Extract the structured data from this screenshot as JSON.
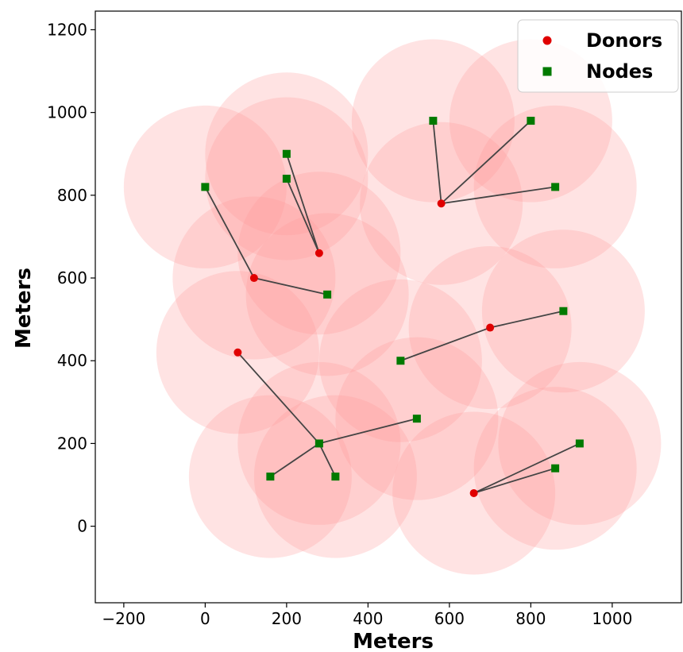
{
  "chart_data": {
    "type": "scatter",
    "title": "",
    "xlabel": "Meters",
    "ylabel": "Meters",
    "xlim": [
      -270,
      1170
    ],
    "ylim": [
      -185,
      1245
    ],
    "xticks": [
      -200,
      0,
      200,
      400,
      600,
      800,
      1000
    ],
    "yticks": [
      0,
      200,
      400,
      600,
      800,
      1000,
      1200
    ],
    "xtick_labels": [
      "−200",
      "0",
      "200",
      "400",
      "600",
      "800",
      "1000"
    ],
    "ytick_labels": [
      "0",
      "200",
      "400",
      "600",
      "800",
      "1000",
      "1200"
    ],
    "grid": false,
    "legend_position": "upper-right",
    "coverage_radius": 200,
    "series": [
      {
        "name": "Donors",
        "marker": "circle",
        "color": "#e00000",
        "points": [
          {
            "x": 280,
            "y": 660
          },
          {
            "x": 120,
            "y": 600
          },
          {
            "x": 580,
            "y": 780
          },
          {
            "x": 80,
            "y": 420
          },
          {
            "x": 700,
            "y": 480
          },
          {
            "x": 660,
            "y": 80
          }
        ]
      },
      {
        "name": "Nodes",
        "marker": "square",
        "color": "#007a00",
        "points": [
          {
            "x": 0,
            "y": 820
          },
          {
            "x": 200,
            "y": 900
          },
          {
            "x": 200,
            "y": 840
          },
          {
            "x": 300,
            "y": 560
          },
          {
            "x": 560,
            "y": 980
          },
          {
            "x": 800,
            "y": 980
          },
          {
            "x": 860,
            "y": 820
          },
          {
            "x": 480,
            "y": 400
          },
          {
            "x": 880,
            "y": 520
          },
          {
            "x": 280,
            "y": 200
          },
          {
            "x": 520,
            "y": 260
          },
          {
            "x": 160,
            "y": 120
          },
          {
            "x": 320,
            "y": 120
          },
          {
            "x": 920,
            "y": 200
          },
          {
            "x": 860,
            "y": 140
          }
        ]
      }
    ],
    "links": [
      {
        "from": [
          280,
          660
        ],
        "to": [
          200,
          900
        ]
      },
      {
        "from": [
          280,
          660
        ],
        "to": [
          200,
          840
        ]
      },
      {
        "from": [
          120,
          600
        ],
        "to": [
          0,
          820
        ]
      },
      {
        "from": [
          120,
          600
        ],
        "to": [
          300,
          560
        ]
      },
      {
        "from": [
          580,
          780
        ],
        "to": [
          560,
          980
        ]
      },
      {
        "from": [
          580,
          780
        ],
        "to": [
          800,
          980
        ]
      },
      {
        "from": [
          580,
          780
        ],
        "to": [
          860,
          820
        ]
      },
      {
        "from": [
          700,
          480
        ],
        "to": [
          480,
          400
        ]
      },
      {
        "from": [
          700,
          480
        ],
        "to": [
          880,
          520
        ]
      },
      {
        "from": [
          80,
          420
        ],
        "to": [
          280,
          200
        ]
      },
      {
        "from": [
          280,
          200
        ],
        "to": [
          520,
          260
        ]
      },
      {
        "from": [
          280,
          200
        ],
        "to": [
          160,
          120
        ]
      },
      {
        "from": [
          280,
          200
        ],
        "to": [
          320,
          120
        ]
      },
      {
        "from": [
          660,
          80
        ],
        "to": [
          920,
          200
        ]
      },
      {
        "from": [
          660,
          80
        ],
        "to": [
          860,
          140
        ]
      }
    ],
    "coverage_circles": [
      {
        "x": 0,
        "y": 820
      },
      {
        "x": 200,
        "y": 900
      },
      {
        "x": 200,
        "y": 840
      },
      {
        "x": 280,
        "y": 660
      },
      {
        "x": 120,
        "y": 600
      },
      {
        "x": 300,
        "y": 560
      },
      {
        "x": 80,
        "y": 420
      },
      {
        "x": 560,
        "y": 980
      },
      {
        "x": 800,
        "y": 980
      },
      {
        "x": 580,
        "y": 780
      },
      {
        "x": 860,
        "y": 820
      },
      {
        "x": 700,
        "y": 480
      },
      {
        "x": 880,
        "y": 520
      },
      {
        "x": 480,
        "y": 400
      },
      {
        "x": 520,
        "y": 260
      },
      {
        "x": 280,
        "y": 200
      },
      {
        "x": 160,
        "y": 120
      },
      {
        "x": 320,
        "y": 120
      },
      {
        "x": 660,
        "y": 80
      },
      {
        "x": 860,
        "y": 140
      },
      {
        "x": 920,
        "y": 200
      }
    ],
    "colors": {
      "coverage_fill": "#ff9a9a",
      "coverage_opacity": 0.28,
      "link": "#444444",
      "axis": "#000000"
    }
  }
}
